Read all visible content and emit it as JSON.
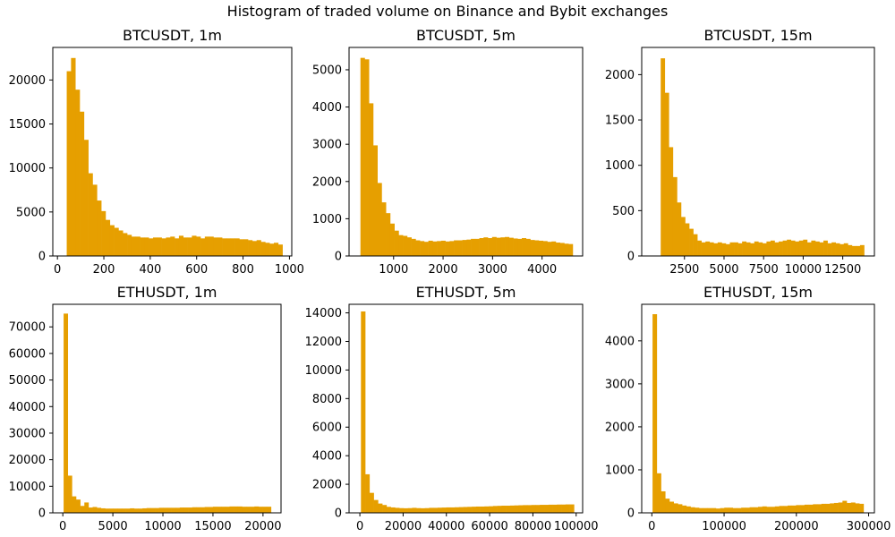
{
  "figure": {
    "title": "Histogram of traded volume on Binance and Bybit exchanges",
    "bar_color": "#E69F00",
    "background": "#ffffff"
  },
  "chart_data": [
    {
      "type": "bar",
      "id": "btc_1m",
      "title": "BTCUSDT, 1m",
      "xlim": [
        -20,
        1010
      ],
      "ylim": [
        0,
        23700
      ],
      "xticks": [
        0,
        200,
        400,
        600,
        800,
        1000
      ],
      "xtick_labels": [
        "0",
        "200",
        "400",
        "600",
        "800",
        "1000"
      ],
      "yticks": [
        0,
        5000,
        10000,
        15000,
        20000
      ],
      "ytick_labels": [
        "0",
        "5000",
        "10000",
        "15000",
        "20000"
      ],
      "bin_start": 40,
      "bin_end": 970,
      "values": [
        21000,
        22500,
        18900,
        16400,
        13200,
        9400,
        8100,
        6300,
        5100,
        4100,
        3500,
        3200,
        2900,
        2600,
        2400,
        2200,
        2200,
        2100,
        2100,
        2000,
        2100,
        2100,
        2000,
        2100,
        2200,
        2000,
        2300,
        2100,
        2100,
        2300,
        2200,
        2000,
        2200,
        2200,
        2100,
        2100,
        2000,
        2000,
        2000,
        2000,
        1900,
        1900,
        1800,
        1700,
        1800,
        1600,
        1500,
        1400,
        1500,
        1300
      ]
    },
    {
      "type": "bar",
      "id": "btc_5m",
      "title": "BTCUSDT, 5m",
      "xlim": [
        100,
        4820
      ],
      "ylim": [
        0,
        5600
      ],
      "xticks": [
        1000,
        2000,
        3000,
        4000
      ],
      "xtick_labels": [
        "1000",
        "2000",
        "3000",
        "4000"
      ],
      "yticks": [
        0,
        1000,
        2000,
        3000,
        4000,
        5000
      ],
      "ytick_labels": [
        "0",
        "1000",
        "2000",
        "3000",
        "4000",
        "5000"
      ],
      "bin_start": 330,
      "bin_end": 4620,
      "values": [
        5320,
        5280,
        4100,
        2970,
        1960,
        1440,
        1150,
        870,
        680,
        560,
        540,
        500,
        460,
        420,
        400,
        380,
        410,
        390,
        400,
        410,
        390,
        400,
        420,
        420,
        430,
        440,
        460,
        460,
        480,
        500,
        480,
        510,
        490,
        500,
        510,
        490,
        470,
        460,
        480,
        460,
        430,
        420,
        410,
        400,
        380,
        390,
        360,
        350,
        330,
        320
      ]
    },
    {
      "type": "bar",
      "id": "btc_15m",
      "title": "BTCUSDT, 15m",
      "xlim": [
        -200,
        14500
      ],
      "ylim": [
        0,
        2300
      ],
      "xticks": [
        2500,
        5000,
        7500,
        10000,
        12500
      ],
      "xtick_labels": [
        "2500",
        "5000",
        "7500",
        "10000",
        "12500"
      ],
      "yticks": [
        0,
        500,
        1000,
        1500,
        2000
      ],
      "ytick_labels": [
        "0",
        "500",
        "1000",
        "1500",
        "2000"
      ],
      "bin_start": 1000,
      "bin_end": 13850,
      "values": [
        2180,
        1800,
        1200,
        870,
        590,
        430,
        360,
        300,
        240,
        170,
        150,
        160,
        150,
        140,
        150,
        140,
        130,
        150,
        150,
        140,
        160,
        150,
        140,
        160,
        150,
        140,
        160,
        170,
        150,
        160,
        170,
        180,
        170,
        160,
        170,
        180,
        150,
        170,
        160,
        150,
        170,
        140,
        150,
        140,
        130,
        140,
        120,
        110,
        110,
        120
      ]
    },
    {
      "type": "bar",
      "id": "eth_1m",
      "title": "ETHUSDT, 1m",
      "xlim": [
        -1000,
        21800
      ],
      "ylim": [
        0,
        78500
      ],
      "xticks": [
        0,
        5000,
        10000,
        15000,
        20000
      ],
      "xtick_labels": [
        "0",
        "5000",
        "10000",
        "15000",
        "20000"
      ],
      "yticks": [
        0,
        10000,
        20000,
        30000,
        40000,
        50000,
        60000,
        70000
      ],
      "ytick_labels": [
        "0",
        "10000",
        "20000",
        "30000",
        "40000",
        "50000",
        "60000",
        "70000"
      ],
      "bin_start": 80,
      "bin_end": 20800,
      "values": [
        75000,
        14000,
        6200,
        5000,
        2600,
        3900,
        2000,
        2200,
        1900,
        1700,
        1600,
        1600,
        1600,
        1600,
        1600,
        1600,
        1700,
        1600,
        1600,
        1700,
        1800,
        1800,
        1800,
        1900,
        1900,
        1900,
        1900,
        1900,
        2000,
        2000,
        2000,
        2100,
        2100,
        2100,
        2200,
        2200,
        2300,
        2300,
        2300,
        2300,
        2400,
        2400,
        2400,
        2300,
        2300,
        2300,
        2400,
        2300,
        2300,
        2300
      ]
    },
    {
      "type": "bar",
      "id": "eth_5m",
      "title": "ETHUSDT, 5m",
      "xlim": [
        -5000,
        103000
      ],
      "ylim": [
        0,
        14600
      ],
      "xticks": [
        0,
        20000,
        40000,
        60000,
        80000,
        100000
      ],
      "xtick_labels": [
        "0",
        "20000",
        "40000",
        "60000",
        "80000",
        "100000"
      ],
      "yticks": [
        0,
        2000,
        4000,
        6000,
        8000,
        10000,
        12000,
        14000
      ],
      "ytick_labels": [
        "0",
        "2000",
        "4000",
        "6000",
        "8000",
        "10000",
        "12000",
        "14000"
      ],
      "bin_start": 500,
      "bin_end": 99000,
      "values": [
        14100,
        2700,
        1400,
        900,
        650,
        550,
        420,
        380,
        350,
        330,
        320,
        330,
        350,
        330,
        320,
        330,
        350,
        350,
        360,
        370,
        380,
        380,
        390,
        400,
        410,
        420,
        430,
        440,
        440,
        450,
        460,
        480,
        490,
        500,
        500,
        510,
        520,
        530,
        540,
        540,
        550,
        550,
        560,
        560,
        570,
        570,
        580,
        580,
        590,
        590
      ]
    },
    {
      "type": "bar",
      "id": "eth_15m",
      "title": "ETHUSDT, 15m",
      "xlim": [
        -14000,
        308000
      ],
      "ylim": [
        0,
        4850
      ],
      "xticks": [
        0,
        100000,
        200000,
        300000
      ],
      "xtick_labels": [
        "0",
        "100000",
        "200000",
        "300000"
      ],
      "yticks": [
        0,
        1000,
        2000,
        3000,
        4000
      ],
      "ytick_labels": [
        "0",
        "1000",
        "2000",
        "3000",
        "4000"
      ],
      "bin_start": 1000,
      "bin_end": 293000,
      "values": [
        4620,
        920,
        500,
        330,
        260,
        220,
        200,
        170,
        150,
        130,
        120,
        110,
        110,
        110,
        110,
        100,
        110,
        120,
        120,
        110,
        110,
        120,
        120,
        130,
        130,
        140,
        150,
        140,
        140,
        150,
        160,
        160,
        170,
        170,
        180,
        180,
        190,
        190,
        200,
        200,
        210,
        210,
        220,
        230,
        240,
        280,
        230,
        240,
        220,
        210
      ]
    }
  ]
}
